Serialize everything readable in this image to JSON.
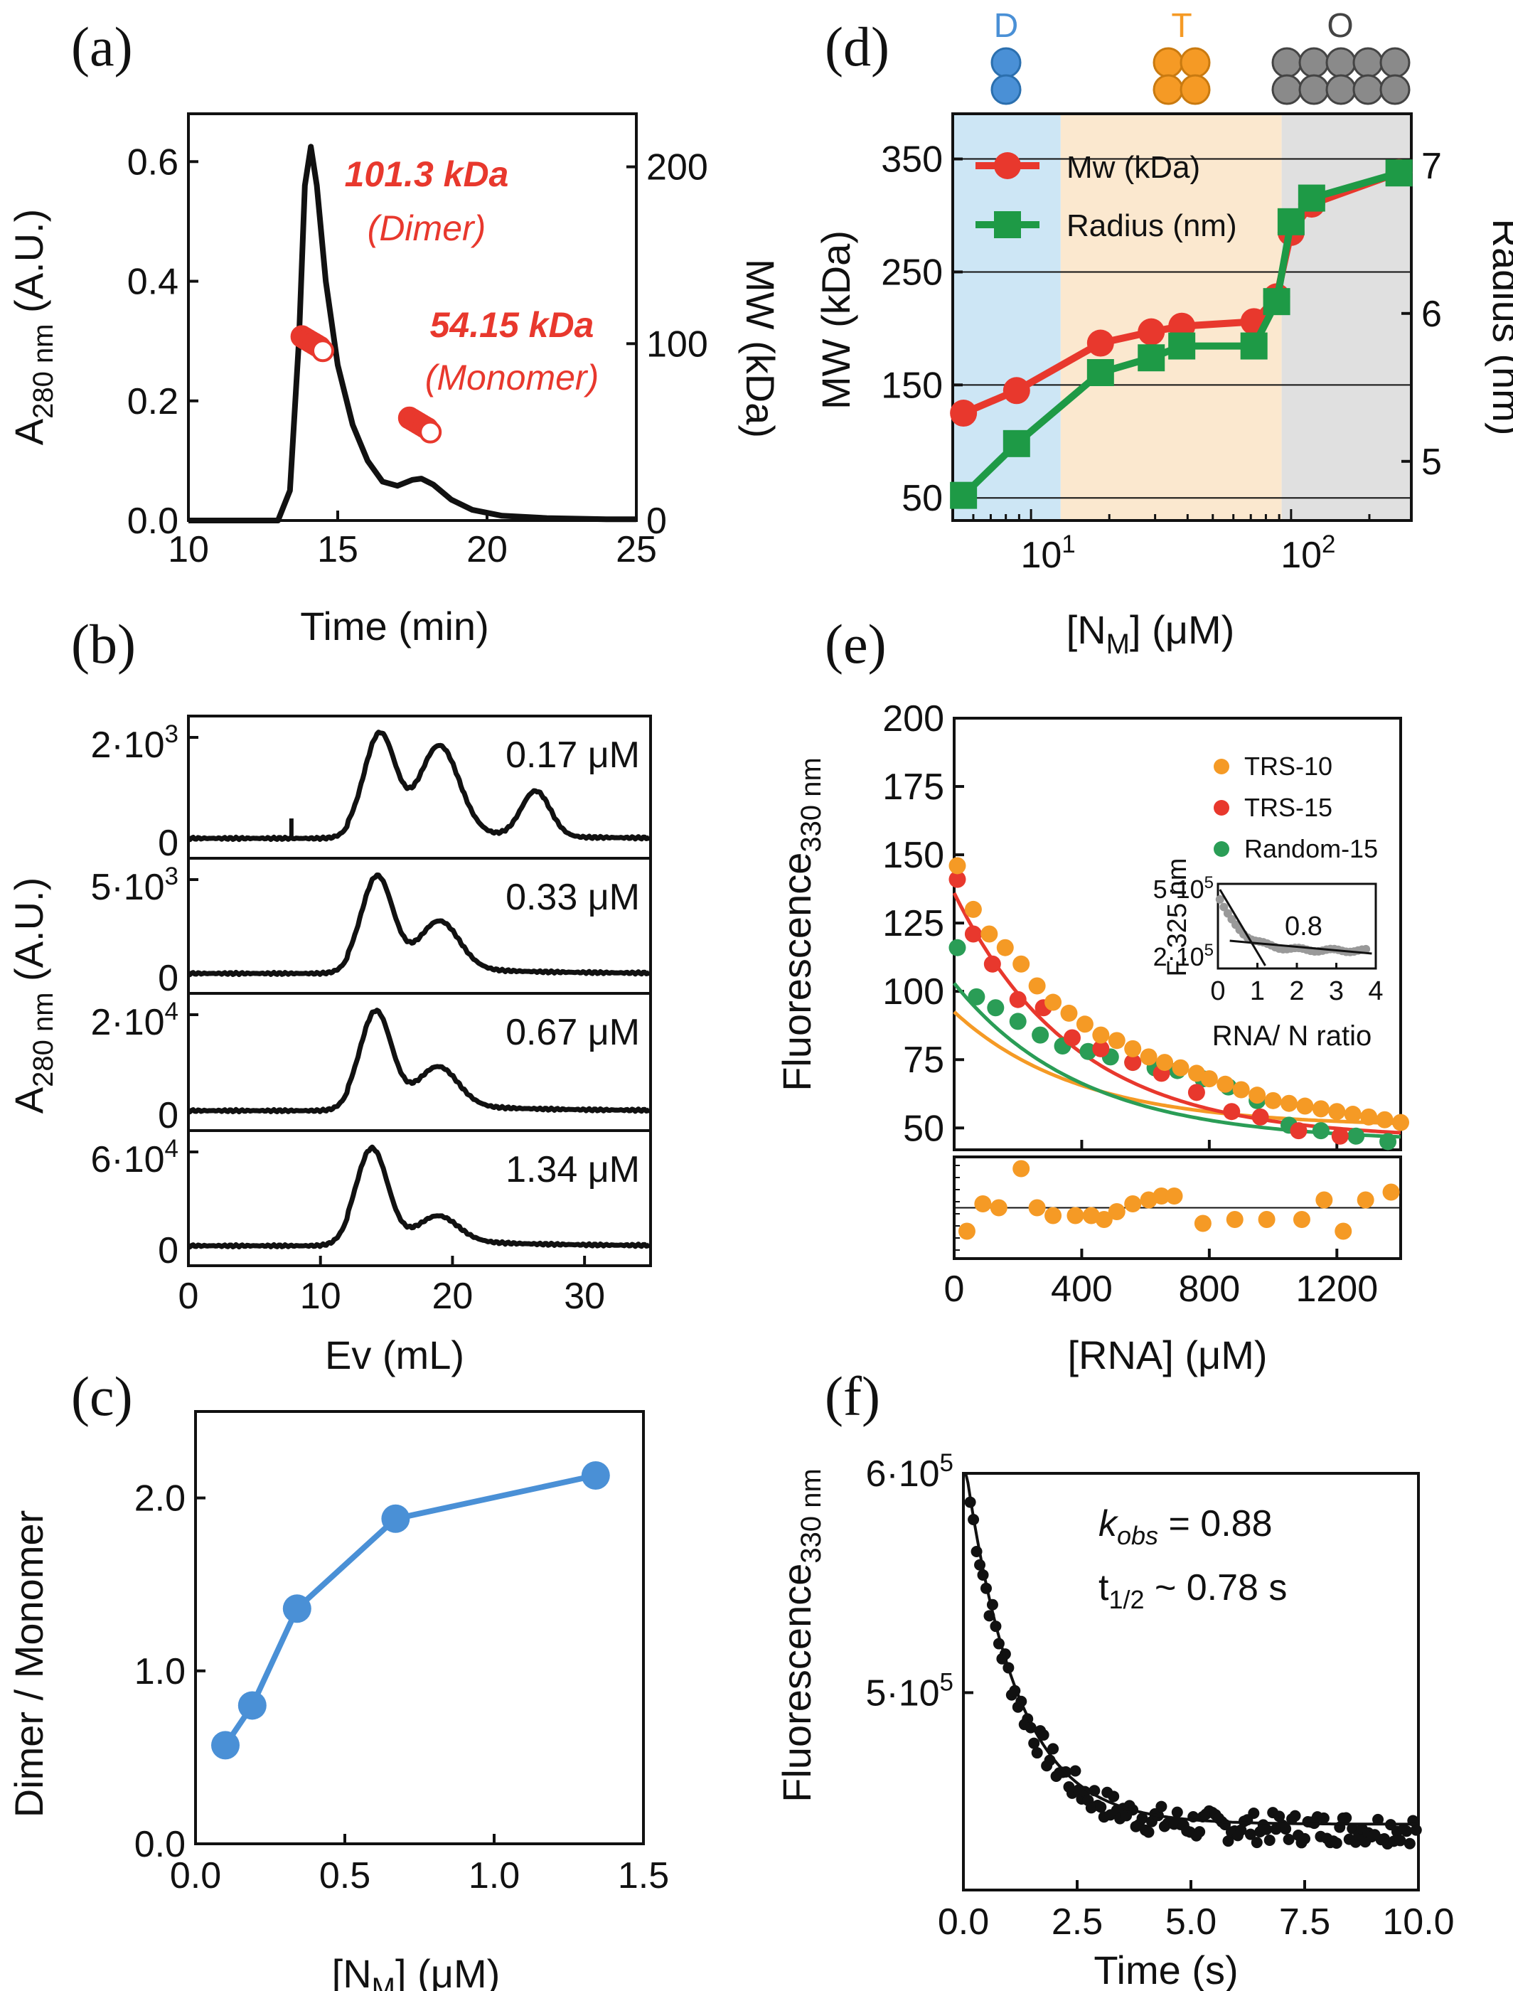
{
  "panels": {
    "a": {
      "label": "(a)",
      "xlabel": "Time (min)",
      "ylabel": "A280 nm (A.U.)",
      "ylabel_main": "A",
      "ylabel_sub": "280 nm",
      "ylabel_tail": " (A.U.)",
      "y2label": "MW (kDa)",
      "ann_dimer_mass": "101.3 kDa",
      "ann_dimer": "(Dimer)",
      "ann_mono_mass": "54.15 kDa",
      "ann_mono": "(Monomer)",
      "xticks": [
        "10",
        "15",
        "20",
        "25"
      ],
      "yticks": [
        "0.0",
        "0.2",
        "0.4",
        "0.6"
      ],
      "y2ticks": [
        "0",
        "100",
        "200"
      ]
    },
    "b": {
      "label": "(b)",
      "xlabel": "Ev (mL)",
      "ylabel_main": "A",
      "ylabel_sub": "280 nm",
      "ylabel_tail": " (A.U.)",
      "xticks": [
        "0",
        "10",
        "20",
        "30"
      ],
      "subplots": [
        {
          "conc": "0.17 μM",
          "ytop": "2·10",
          "exp": "3",
          "yzero": "0"
        },
        {
          "conc": "0.33 μM",
          "ytop": "5·10",
          "exp": "3",
          "yzero": "0"
        },
        {
          "conc": "0.67 μM",
          "ytop": "2·10",
          "exp": "4",
          "yzero": "0"
        },
        {
          "conc": "1.34 μM",
          "ytop": "6·10",
          "exp": "4",
          "yzero": "0"
        }
      ]
    },
    "c": {
      "label": "(c)",
      "xlabel_main": "[N",
      "xlabel_sub": "M",
      "xlabel_tail": "] (μM)",
      "ylabel": "Dimer / Monomer",
      "xticks": [
        "0.0",
        "0.5",
        "1.0",
        "1.5"
      ],
      "yticks": [
        "0.0",
        "1.0",
        "2.0"
      ]
    },
    "d": {
      "label": "(d)",
      "state_labels": [
        "D",
        "T",
        "O"
      ],
      "xlabel_main": "[N",
      "xlabel_sub": "M",
      "xlabel_tail": "] (μM)",
      "ylabel": "MW (kDa)",
      "y2label": "Radius (nm)",
      "legend": [
        "Mw (kDa)",
        "Radius (nm)"
      ],
      "xticks": [
        {
          "base": "10",
          "exp": "1"
        },
        {
          "base": "10",
          "exp": "2"
        }
      ],
      "yticks": [
        "50",
        "150",
        "250",
        "350"
      ],
      "y2ticks": [
        "5",
        "6",
        "7"
      ]
    },
    "e": {
      "label": "(e)",
      "xlabel": "[RNA] (μM)",
      "ylabel_main": "Fluorescence",
      "ylabel_sub": "330 nm",
      "legend": [
        "TRS-10",
        "TRS-15",
        "Random-15"
      ],
      "xticks": [
        "0",
        "400",
        "800",
        "1200"
      ],
      "yticks": [
        "50",
        "75",
        "100",
        "125",
        "150",
        "175",
        "200"
      ],
      "inset": {
        "ylabel": "F. 325 nm",
        "xlabel": "RNA/ N ratio",
        "annotation": "0.8",
        "xticks": [
          "0",
          "1",
          "2",
          "3",
          "4"
        ],
        "yticks": [
          {
            "base": "5·10",
            "exp": "5"
          },
          {
            "base": "2·10",
            "exp": "5"
          }
        ]
      }
    },
    "f": {
      "label": "(f)",
      "xlabel": "Time (s)",
      "ylabel_main": "Fluorescence",
      "ylabel_sub": "330 nm",
      "ann_k": "k",
      "ann_k_sub": "obs",
      "ann_k_val": " = 0.88",
      "ann_t": "t",
      "ann_t_sub": "1/2",
      "ann_t_val": " ~ 0.78 s",
      "xticks": [
        "0.0",
        "2.5",
        "5.0",
        "7.5",
        "10.0"
      ],
      "yticks": [
        {
          "base": "6·10",
          "exp": "5"
        },
        {
          "base": "5·10",
          "exp": "5"
        }
      ]
    }
  },
  "colors": {
    "red": "#e8382d",
    "green": "#1e9a46",
    "orange": "#f59a25",
    "blue": "#4a90d6",
    "dark_green": "#2a9d56",
    "black": "#111111",
    "shade_blue": "#cde6f5",
    "shade_orange": "#fbe8cf",
    "shade_gray": "#e0e0e0"
  },
  "chart_data": [
    {
      "panel": "a",
      "type": "line",
      "x": [
        13.0,
        13.4,
        13.7,
        13.9,
        14.1,
        14.3,
        14.6,
        15.0,
        15.5,
        16.0,
        16.5,
        17.0,
        17.5,
        17.8,
        18.2,
        18.8,
        19.5,
        20.5,
        22,
        24,
        25
      ],
      "y": [
        0.0,
        0.05,
        0.3,
        0.56,
        0.625,
        0.56,
        0.4,
        0.26,
        0.16,
        0.1,
        0.065,
        0.058,
        0.068,
        0.07,
        0.06,
        0.035,
        0.018,
        0.008,
        0.004,
        0.002,
        0.002
      ],
      "mw_dimer_x": [
        13.8,
        13.9,
        14.0,
        14.1,
        14.2,
        14.3,
        14.4,
        14.5
      ],
      "mw_dimer_y": [
        104,
        103,
        102,
        101,
        100,
        99,
        98,
        96
      ],
      "mw_monomer_x": [
        17.4,
        17.5,
        17.6,
        17.7,
        17.8,
        17.9,
        18.0,
        18.1
      ],
      "mw_monomer_y": [
        58,
        57,
        56,
        55,
        54,
        53,
        52,
        50
      ],
      "xlim": [
        10,
        25
      ],
      "ylim": [
        0,
        0.68
      ],
      "y2lim": [
        0,
        230
      ]
    },
    {
      "panel": "b",
      "type": "line",
      "series": [
        {
          "name": "0.17 μM",
          "peaks": [
            [
              14.5,
              1.0
            ],
            [
              19.0,
              0.88
            ],
            [
              26.3,
              0.45
            ]
          ]
        },
        {
          "name": "0.33 μM",
          "peaks": [
            [
              14.3,
              1.0
            ],
            [
              19.0,
              0.52
            ]
          ]
        },
        {
          "name": "0.67 μM",
          "peaks": [
            [
              14.2,
              1.0
            ],
            [
              18.9,
              0.42
            ]
          ]
        },
        {
          "name": "1.34 μM",
          "peaks": [
            [
              13.9,
              1.0
            ],
            [
              18.9,
              0.28
            ]
          ]
        }
      ],
      "xlim": [
        0,
        35
      ]
    },
    {
      "panel": "c",
      "type": "line",
      "x": [
        0.1,
        0.19,
        0.34,
        0.67,
        1.34
      ],
      "y": [
        0.57,
        0.8,
        1.36,
        1.88,
        2.13
      ],
      "xlim": [
        0,
        1.5
      ],
      "ylim": [
        0,
        2.5
      ]
    },
    {
      "panel": "d",
      "type": "line",
      "xscale": "log",
      "series": [
        {
          "name": "Mw (kDa)",
          "x": [
            5.5,
            8.8,
            18.5,
            29,
            38,
            72,
            88,
            100,
            120,
            260
          ],
          "y": [
            125,
            145,
            187,
            197,
            202,
            206,
            228,
            285,
            310,
            338
          ]
        },
        {
          "name": "Radius (nm)",
          "x": [
            5.5,
            8.8,
            18.5,
            29,
            38,
            72,
            88,
            100,
            120,
            260
          ],
          "y": [
            4.77,
            5.12,
            5.6,
            5.7,
            5.78,
            5.78,
            6.08,
            6.62,
            6.78,
            6.95
          ]
        }
      ],
      "xlim": [
        5,
        290
      ],
      "ylim": [
        30,
        390
      ],
      "y2lim": [
        4.6,
        7.35
      ]
    },
    {
      "panel": "e",
      "type": "scatter",
      "series": [
        {
          "name": "TRS-10",
          "x": [
            10,
            60,
            110,
            160,
            210,
            260,
            310,
            360,
            410,
            460,
            510,
            560,
            610,
            660,
            710,
            760,
            800,
            850,
            900,
            950,
            1000,
            1050,
            1100,
            1150,
            1200,
            1250,
            1300,
            1350,
            1400
          ],
          "y": [
            146,
            130,
            121,
            116,
            110,
            102,
            96,
            92,
            88,
            84,
            82,
            79,
            76,
            74,
            72,
            70,
            68,
            66,
            64,
            62,
            60,
            59,
            58,
            57,
            56,
            55,
            54,
            53,
            52
          ]
        },
        {
          "name": "TRS-15",
          "x": [
            10,
            60,
            120,
            200,
            280,
            370,
            460,
            560,
            650,
            760,
            870,
            960,
            1080,
            1210
          ],
          "y": [
            141,
            121,
            110,
            97,
            94,
            83,
            79,
            74,
            70,
            63,
            56,
            54,
            49,
            47
          ]
        },
        {
          "name": "Random-15",
          "x": [
            10,
            70,
            130,
            200,
            270,
            340,
            420,
            490,
            560,
            630,
            700,
            780,
            860,
            950,
            1050,
            1150,
            1260,
            1360
          ],
          "y": [
            116,
            98,
            94,
            89,
            84,
            80,
            78,
            76,
            74,
            72,
            71,
            68,
            65,
            60,
            51,
            49,
            47,
            45
          ]
        }
      ],
      "fits": [
        {
          "name": "TRS-10",
          "A": 42,
          "y0": 50.5,
          "tau": 390
        },
        {
          "name": "TRS-15",
          "A": 90,
          "y0": 46,
          "tau": 380
        },
        {
          "name": "Random-15",
          "A": 58,
          "y0": 45,
          "tau": 400
        }
      ],
      "residuals_x": [
        40,
        90,
        140,
        210,
        260,
        310,
        380,
        430,
        470,
        510,
        560,
        610,
        650,
        690,
        780,
        880,
        980,
        1090,
        1160,
        1220,
        1290,
        1370
      ],
      "residuals_y": [
        -0.6,
        0.1,
        0.0,
        1.0,
        0.0,
        -0.2,
        -0.2,
        -0.2,
        -0.3,
        -0.1,
        0.1,
        0.2,
        0.3,
        0.3,
        -0.4,
        -0.3,
        -0.3,
        -0.3,
        0.2,
        -0.6,
        0.2,
        0.4
      ],
      "xlim": [
        0,
        1400
      ],
      "ylim": [
        42,
        200
      ]
    },
    {
      "panel": "f",
      "type": "scatter",
      "kobs": 0.88,
      "fit": {
        "A": 170000,
        "y0": 440000,
        "k": 0.88
      },
      "xlim": [
        0,
        10
      ],
      "ylim": [
        410000,
        600000
      ]
    }
  ]
}
